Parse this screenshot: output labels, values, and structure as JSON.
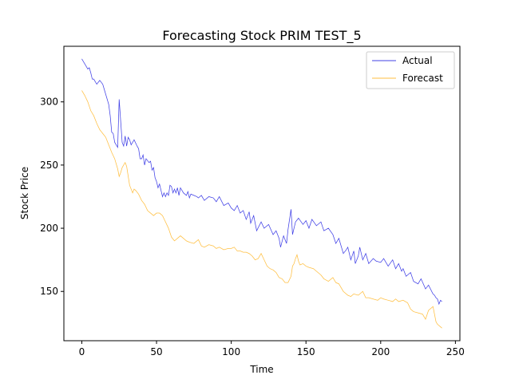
{
  "chart_data": {
    "type": "line",
    "title": "Forecasting Stock PRIM TEST_5",
    "xlabel": "Time",
    "ylabel": "Stock Price",
    "xlim": [
      -12,
      253
    ],
    "ylim": [
      111,
      344
    ],
    "xticks": [
      0,
      50,
      100,
      150,
      200,
      250
    ],
    "yticks": [
      150,
      200,
      250,
      300
    ],
    "grid": false,
    "legend": "top-right",
    "series": [
      {
        "name": "Actual",
        "color": "#0000dd",
        "x": [
          0,
          3,
          4,
          5,
          6,
          7,
          8,
          10,
          12,
          14,
          15,
          17,
          18,
          19,
          20,
          21,
          22,
          24,
          25,
          26,
          27,
          28,
          29,
          30,
          31,
          32,
          33,
          34,
          35,
          37,
          38,
          39,
          40,
          41,
          42,
          43,
          45,
          46,
          47,
          48,
          49,
          50,
          51,
          52,
          53,
          54,
          55,
          56,
          57,
          58,
          59,
          60,
          61,
          62,
          63,
          64,
          65,
          66,
          67,
          68,
          70,
          71,
          72,
          73,
          75,
          77,
          78,
          80,
          82,
          85,
          88,
          90,
          92,
          95,
          98,
          100,
          102,
          104,
          106,
          108,
          110,
          112,
          113,
          115,
          117,
          120,
          122,
          125,
          128,
          130,
          132,
          133,
          135,
          137,
          138,
          140,
          141,
          142,
          143,
          145,
          148,
          150,
          152,
          154,
          157,
          160,
          162,
          165,
          168,
          170,
          172,
          175,
          177,
          178,
          180,
          182,
          183,
          185,
          186,
          188,
          190,
          192,
          195,
          197,
          200,
          202,
          205,
          208,
          210,
          212,
          214,
          215,
          217,
          220,
          222,
          225,
          227,
          230,
          232,
          235,
          236,
          237,
          238,
          239,
          240,
          241
        ],
        "y": [
          334,
          328,
          326,
          327,
          323,
          318,
          318,
          314,
          317,
          314,
          310,
          302,
          298,
          289,
          276,
          275,
          268,
          264,
          302,
          285,
          268,
          265,
          273,
          265,
          272,
          270,
          266,
          268,
          270,
          265,
          263,
          255,
          255,
          258,
          250,
          255,
          252,
          253,
          246,
          248,
          240,
          237,
          232,
          235,
          230,
          225,
          228,
          225,
          228,
          226,
          234,
          233,
          228,
          231,
          228,
          232,
          226,
          232,
          230,
          228,
          226,
          229,
          224,
          227,
          226,
          225,
          224,
          226,
          222,
          225,
          224,
          221,
          225,
          218,
          220,
          216,
          214,
          218,
          212,
          214,
          207,
          213,
          204,
          210,
          198,
          205,
          200,
          203,
          195,
          198,
          192,
          185,
          194,
          188,
          199,
          215,
          195,
          200,
          205,
          208,
          203,
          206,
          200,
          207,
          202,
          205,
          198,
          200,
          195,
          188,
          192,
          180,
          183,
          185,
          175,
          182,
          172,
          178,
          185,
          175,
          180,
          172,
          176,
          174,
          173,
          176,
          170,
          175,
          168,
          172,
          166,
          168,
          162,
          165,
          158,
          156,
          160,
          152,
          155,
          148,
          147,
          145,
          144,
          140,
          143,
          142
        ]
      },
      {
        "name": "Forecast",
        "color": "#ffaa00",
        "x": [
          0,
          2,
          4,
          6,
          8,
          10,
          12,
          14,
          16,
          18,
          20,
          22,
          24,
          25,
          26,
          27,
          28,
          29,
          30,
          32,
          34,
          35,
          36,
          38,
          40,
          42,
          44,
          46,
          48,
          50,
          52,
          54,
          56,
          58,
          60,
          62,
          64,
          66,
          68,
          70,
          72,
          75,
          78,
          80,
          82,
          85,
          88,
          90,
          92,
          95,
          98,
          100,
          102,
          104,
          106,
          108,
          110,
          112,
          114,
          116,
          118,
          120,
          122,
          124,
          126,
          128,
          130,
          132,
          134,
          136,
          138,
          140,
          141,
          142,
          143,
          144,
          145,
          146,
          148,
          150,
          152,
          155,
          158,
          160,
          162,
          165,
          168,
          170,
          172,
          175,
          178,
          180,
          182,
          185,
          188,
          190,
          192,
          195,
          198,
          200,
          202,
          205,
          208,
          210,
          212,
          215,
          218,
          220,
          222,
          225,
          228,
          230,
          232,
          235,
          237,
          238,
          240,
          241
        ],
        "y": [
          309,
          305,
          300,
          293,
          289,
          283,
          278,
          275,
          272,
          266,
          260,
          255,
          247,
          241,
          244,
          248,
          250,
          252,
          249,
          234,
          228,
          231,
          230,
          227,
          222,
          219,
          214,
          212,
          210,
          212,
          212,
          210,
          205,
          200,
          193,
          190,
          192,
          194,
          192,
          190,
          189,
          188,
          191,
          186,
          185,
          187,
          186,
          184,
          185,
          183,
          184,
          184,
          185,
          182,
          182,
          181,
          181,
          180,
          178,
          175,
          176,
          180,
          175,
          170,
          168,
          167,
          165,
          161,
          160,
          157,
          157,
          162,
          170,
          172,
          176,
          179,
          174,
          171,
          172,
          170,
          169,
          168,
          165,
          163,
          160,
          158,
          161,
          157,
          156,
          150,
          147,
          146,
          148,
          147,
          150,
          145,
          145,
          144,
          143,
          145,
          144,
          143,
          142,
          144,
          142,
          143,
          141,
          136,
          134,
          133,
          132,
          128,
          135,
          138,
          126,
          124,
          122,
          121
        ]
      }
    ]
  }
}
